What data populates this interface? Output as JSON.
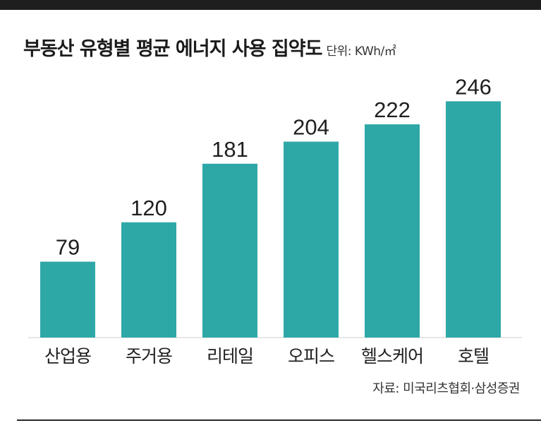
{
  "chart_data": {
    "type": "bar",
    "title": "부동산 유형별 평균 에너지 사용 집약도",
    "unit": "단위: KWh/㎡",
    "categories": [
      "산업용",
      "주거용",
      "리테일",
      "오피스",
      "헬스케어",
      "호텔"
    ],
    "values": [
      79,
      120,
      181,
      204,
      222,
      246
    ],
    "bar_color": "#2ea7a7",
    "source": "자료: 미국리츠협회·삼성증권",
    "grid": false,
    "legend": "none"
  },
  "colors": {
    "rule": "#1e1e1e",
    "text": "#1f1f1f"
  }
}
